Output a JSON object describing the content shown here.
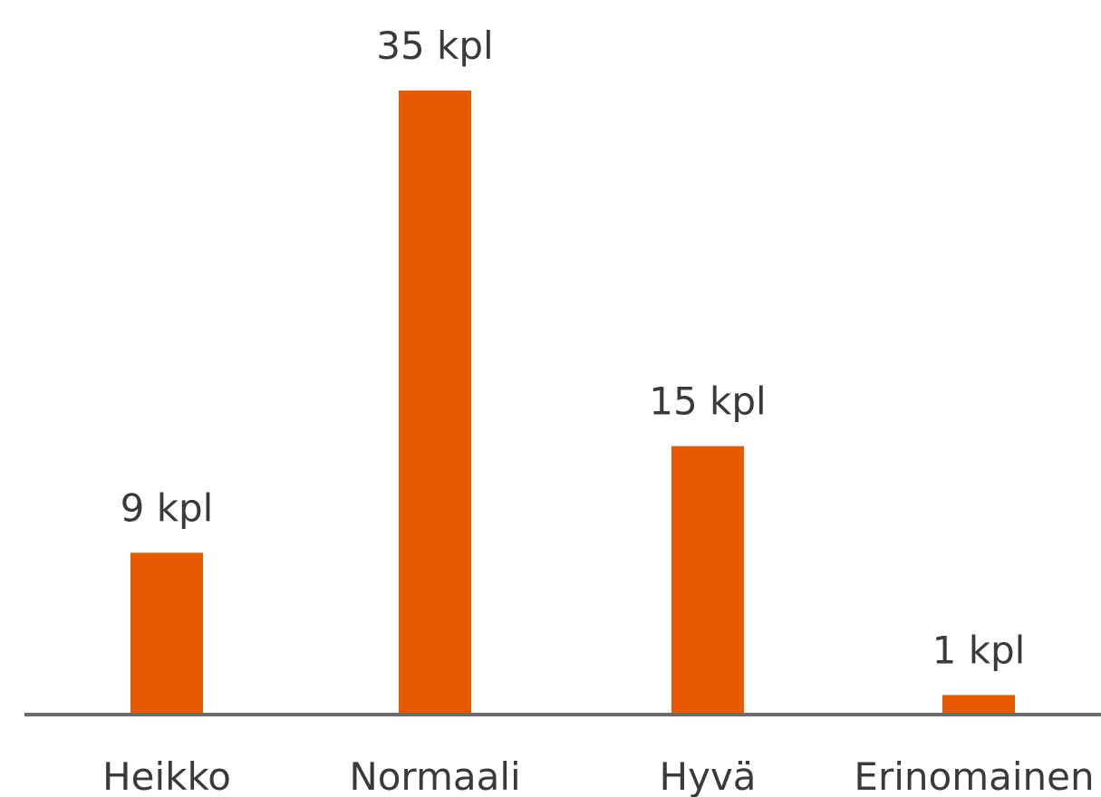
{
  "chart_data": {
    "type": "bar",
    "categories": [
      "Heikko",
      "Normaali",
      "Hyvä",
      "Erinomainen"
    ],
    "values": [
      9,
      35,
      15,
      1
    ],
    "value_labels": [
      "9 kpl",
      "35 kpl",
      "15 kpl",
      "1 kpl"
    ],
    "title": "",
    "xlabel": "",
    "ylabel": "",
    "ylim": [
      0,
      35
    ],
    "grid": false,
    "legend": "none",
    "colors": {
      "bar": "#e85a00",
      "axis": "#6b6b6b",
      "text": "#3a3a3a"
    }
  }
}
